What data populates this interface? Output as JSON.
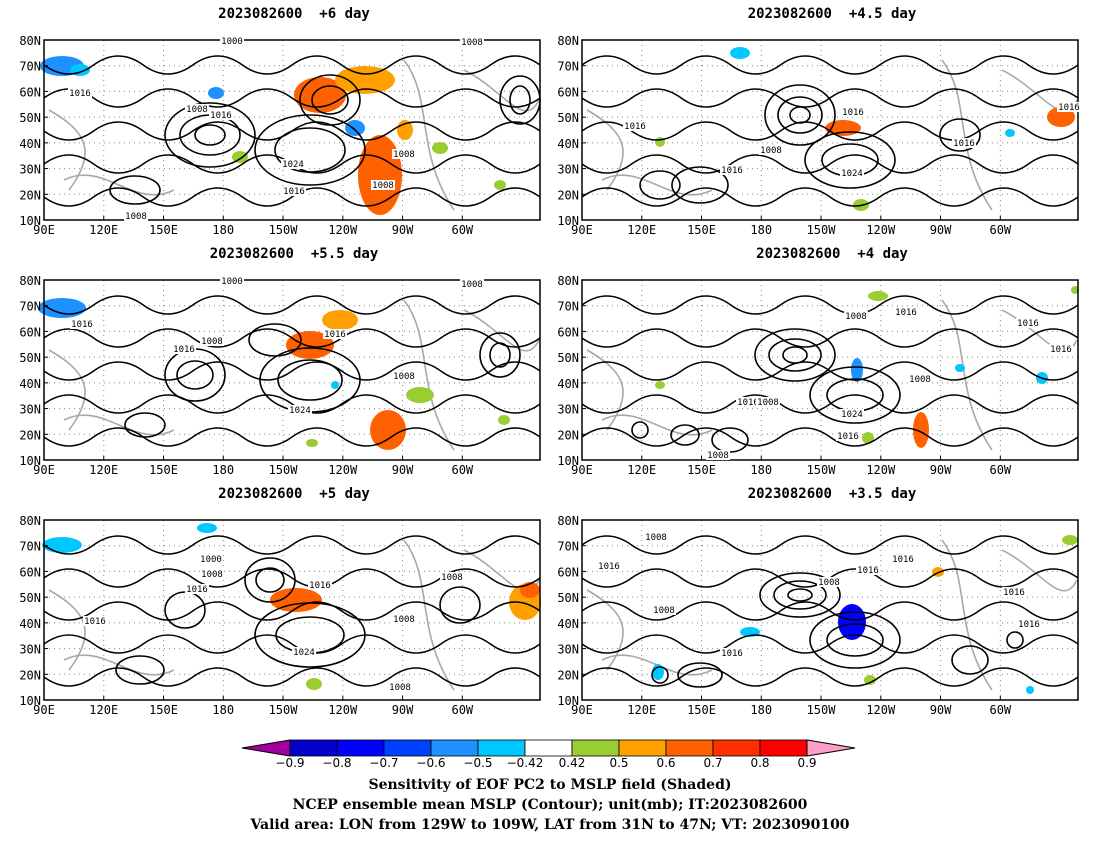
{
  "panels": [
    {
      "title": "2023082600  +6 day"
    },
    {
      "title": "2023082600  +4.5 day"
    },
    {
      "title": "2023082600  +5.5 day"
    },
    {
      "title": "2023082600  +4 day"
    },
    {
      "title": "2023082600  +5 day"
    },
    {
      "title": "2023082600  +3.5 day"
    }
  ],
  "axes": {
    "y_ticks": [
      "80N",
      "70N",
      "60N",
      "50N",
      "40N",
      "30N",
      "20N",
      "10N"
    ],
    "x_ticks": [
      "90E",
      "120E",
      "150E",
      "180",
      "150W",
      "120W",
      "90W",
      "60W"
    ]
  },
  "contour_labels": {
    "p0": [
      "1000",
      "1008",
      "1016",
      "1008",
      "1016",
      "1024",
      "1016",
      "1008",
      "1008",
      "1008"
    ],
    "p1": [
      "1016",
      "1016",
      "1008",
      "1016",
      "1024",
      "1016",
      "1016"
    ],
    "p2": [
      "1000",
      "1016",
      "1008",
      "1016",
      "1008",
      "1016",
      "1024",
      "1008"
    ],
    "p3": [
      "1008",
      "1016",
      "1016",
      "1016",
      "1024",
      "1016",
      "1008",
      "1008",
      "1016",
      "1008"
    ],
    "p4": [
      "1000",
      "1008",
      "1016",
      "1016",
      "1024",
      "1016",
      "1008",
      "1008",
      "1008"
    ],
    "p5": [
      "1008",
      "1016",
      "1016",
      "1008",
      "1016",
      "1016",
      "1008",
      "1016",
      "1016"
    ]
  },
  "colorbar": {
    "labels": [
      "−0.9",
      "−0.8",
      "−0.7",
      "−0.6",
      "−0.5",
      "−0.42",
      "0.42",
      "0.5",
      "0.6",
      "0.7",
      "0.8",
      "0.9"
    ],
    "colors": [
      "#a000a0",
      "#0000c8",
      "#0000ff",
      "#0040ff",
      "#1e90ff",
      "#00c8ff",
      "#ffffff",
      "#9acd32",
      "#ffa000",
      "#ff6000",
      "#ff3000",
      "#ff0000",
      "#ff9ec8"
    ]
  },
  "caption": {
    "line1": "Sensitivity of EOF PC2 to MSLP field (Shaded)",
    "line2": "NCEP ensemble mean MSLP (Contour); unit(mb); IT:2023082600",
    "line3": "Valid area: LON from 129W to 109W, LAT from 31N to 47N; VT: 2023090100"
  }
}
